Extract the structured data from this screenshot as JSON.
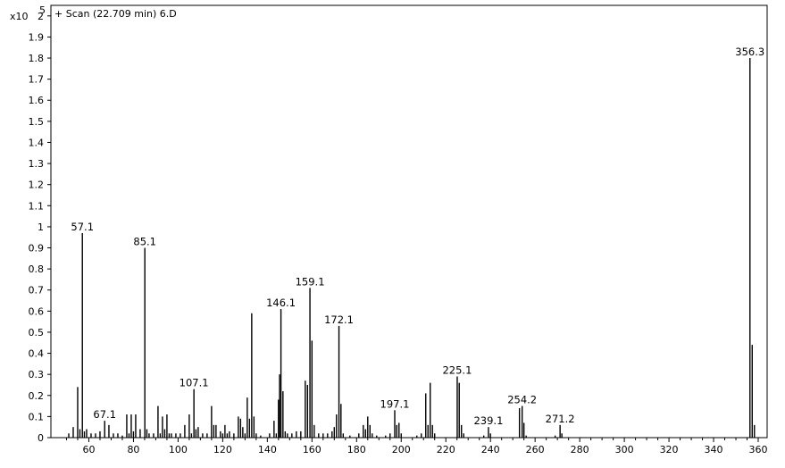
{
  "chart_data": {
    "type": "bar",
    "title": "+ Scan (22.709 min) 6.D",
    "y_multiplier": {
      "base": "x10",
      "exponent": "5"
    },
    "xlim": [
      43,
      364
    ],
    "ylim": [
      0,
      2.05
    ],
    "x_ticks": [
      60,
      80,
      100,
      120,
      140,
      160,
      180,
      200,
      220,
      240,
      260,
      280,
      300,
      320,
      340,
      360
    ],
    "y_ticks": [
      0,
      0.1,
      0.2,
      0.3,
      0.4,
      0.5,
      0.6,
      0.7,
      0.8,
      0.9,
      1,
      1.1,
      1.2,
      1.3,
      1.4,
      1.5,
      1.6,
      1.7,
      1.8,
      1.9,
      2
    ],
    "grid": false,
    "peak_color": "#000000",
    "peaks": [
      {
        "x": 51,
        "y": 0.02
      },
      {
        "x": 53,
        "y": 0.05
      },
      {
        "x": 55,
        "y": 0.24
      },
      {
        "x": 56,
        "y": 0.04
      },
      {
        "x": 57.1,
        "y": 0.97,
        "label": "57.1"
      },
      {
        "x": 58,
        "y": 0.03
      },
      {
        "x": 59,
        "y": 0.04
      },
      {
        "x": 61,
        "y": 0.02
      },
      {
        "x": 63,
        "y": 0.02
      },
      {
        "x": 65,
        "y": 0.03
      },
      {
        "x": 67.1,
        "y": 0.08,
        "label": "67.1"
      },
      {
        "x": 69,
        "y": 0.06
      },
      {
        "x": 71,
        "y": 0.02
      },
      {
        "x": 73,
        "y": 0.02
      },
      {
        "x": 75,
        "y": 0.01
      },
      {
        "x": 77,
        "y": 0.11
      },
      {
        "x": 78,
        "y": 0.02
      },
      {
        "x": 79,
        "y": 0.11
      },
      {
        "x": 80,
        "y": 0.03
      },
      {
        "x": 81,
        "y": 0.11
      },
      {
        "x": 83,
        "y": 0.04
      },
      {
        "x": 85.1,
        "y": 0.9,
        "label": "85.1"
      },
      {
        "x": 86,
        "y": 0.04
      },
      {
        "x": 87,
        "y": 0.02
      },
      {
        "x": 89,
        "y": 0.02
      },
      {
        "x": 91,
        "y": 0.15
      },
      {
        "x": 92,
        "y": 0.02
      },
      {
        "x": 93,
        "y": 0.1
      },
      {
        "x": 94,
        "y": 0.04
      },
      {
        "x": 95,
        "y": 0.11
      },
      {
        "x": 96,
        "y": 0.02
      },
      {
        "x": 97,
        "y": 0.02
      },
      {
        "x": 99,
        "y": 0.02
      },
      {
        "x": 101,
        "y": 0.02
      },
      {
        "x": 103,
        "y": 0.06
      },
      {
        "x": 105,
        "y": 0.11
      },
      {
        "x": 106,
        "y": 0.02
      },
      {
        "x": 107.1,
        "y": 0.23,
        "label": "107.1"
      },
      {
        "x": 108,
        "y": 0.04
      },
      {
        "x": 109,
        "y": 0.05
      },
      {
        "x": 111,
        "y": 0.02
      },
      {
        "x": 113,
        "y": 0.02
      },
      {
        "x": 115,
        "y": 0.15
      },
      {
        "x": 116,
        "y": 0.06
      },
      {
        "x": 117,
        "y": 0.06
      },
      {
        "x": 119,
        "y": 0.03
      },
      {
        "x": 120,
        "y": 0.02
      },
      {
        "x": 121,
        "y": 0.06
      },
      {
        "x": 122,
        "y": 0.02
      },
      {
        "x": 123,
        "y": 0.03
      },
      {
        "x": 125,
        "y": 0.02
      },
      {
        "x": 127,
        "y": 0.1
      },
      {
        "x": 128,
        "y": 0.09
      },
      {
        "x": 129,
        "y": 0.05
      },
      {
        "x": 130,
        "y": 0.02
      },
      {
        "x": 131,
        "y": 0.19
      },
      {
        "x": 132,
        "y": 0.09
      },
      {
        "x": 133,
        "y": 0.59
      },
      {
        "x": 134,
        "y": 0.1
      },
      {
        "x": 135,
        "y": 0.02
      },
      {
        "x": 137,
        "y": 0.01
      },
      {
        "x": 141,
        "y": 0.02
      },
      {
        "x": 143,
        "y": 0.08
      },
      {
        "x": 144,
        "y": 0.02
      },
      {
        "x": 145,
        "y": 0.18
      },
      {
        "x": 145.5,
        "y": 0.3
      },
      {
        "x": 146.1,
        "y": 0.61,
        "label": "146.1"
      },
      {
        "x": 147,
        "y": 0.22
      },
      {
        "x": 148,
        "y": 0.03
      },
      {
        "x": 149,
        "y": 0.02
      },
      {
        "x": 151,
        "y": 0.02
      },
      {
        "x": 153,
        "y": 0.03
      },
      {
        "x": 155,
        "y": 0.03
      },
      {
        "x": 157,
        "y": 0.27
      },
      {
        "x": 158,
        "y": 0.25
      },
      {
        "x": 159.1,
        "y": 0.71,
        "label": "159.1"
      },
      {
        "x": 160,
        "y": 0.46
      },
      {
        "x": 161,
        "y": 0.06
      },
      {
        "x": 163,
        "y": 0.02
      },
      {
        "x": 165,
        "y": 0.02
      },
      {
        "x": 167,
        "y": 0.02
      },
      {
        "x": 169,
        "y": 0.03
      },
      {
        "x": 170,
        "y": 0.05
      },
      {
        "x": 171,
        "y": 0.11
      },
      {
        "x": 172.1,
        "y": 0.53,
        "label": "172.1"
      },
      {
        "x": 173,
        "y": 0.16
      },
      {
        "x": 174,
        "y": 0.02
      },
      {
        "x": 177,
        "y": 0.01
      },
      {
        "x": 181,
        "y": 0.02
      },
      {
        "x": 183,
        "y": 0.06
      },
      {
        "x": 184,
        "y": 0.04
      },
      {
        "x": 185,
        "y": 0.1
      },
      {
        "x": 186,
        "y": 0.06
      },
      {
        "x": 187,
        "y": 0.02
      },
      {
        "x": 189,
        "y": 0.01
      },
      {
        "x": 193,
        "y": 0.01
      },
      {
        "x": 195,
        "y": 0.02
      },
      {
        "x": 197.1,
        "y": 0.13,
        "label": "197.1"
      },
      {
        "x": 198,
        "y": 0.06
      },
      {
        "x": 199,
        "y": 0.07
      },
      {
        "x": 200,
        "y": 0.02
      },
      {
        "x": 207,
        "y": 0.01
      },
      {
        "x": 209,
        "y": 0.02
      },
      {
        "x": 211,
        "y": 0.21
      },
      {
        "x": 212,
        "y": 0.06
      },
      {
        "x": 213,
        "y": 0.26
      },
      {
        "x": 214,
        "y": 0.06
      },
      {
        "x": 215,
        "y": 0.02
      },
      {
        "x": 225.1,
        "y": 0.29,
        "label": "225.1"
      },
      {
        "x": 226,
        "y": 0.26
      },
      {
        "x": 227,
        "y": 0.06
      },
      {
        "x": 228,
        "y": 0.02
      },
      {
        "x": 237,
        "y": 0.01
      },
      {
        "x": 239.1,
        "y": 0.05,
        "label": "239.1"
      },
      {
        "x": 240,
        "y": 0.02
      },
      {
        "x": 253,
        "y": 0.14
      },
      {
        "x": 254.2,
        "y": 0.15,
        "label": "254.2"
      },
      {
        "x": 255,
        "y": 0.07
      },
      {
        "x": 256,
        "y": 0.01
      },
      {
        "x": 269,
        "y": 0.01
      },
      {
        "x": 271.2,
        "y": 0.06,
        "label": "271.2"
      },
      {
        "x": 272,
        "y": 0.02
      },
      {
        "x": 356.3,
        "y": 1.8,
        "label": "356.3"
      },
      {
        "x": 357.3,
        "y": 0.44
      },
      {
        "x": 358.3,
        "y": 0.06
      }
    ]
  }
}
